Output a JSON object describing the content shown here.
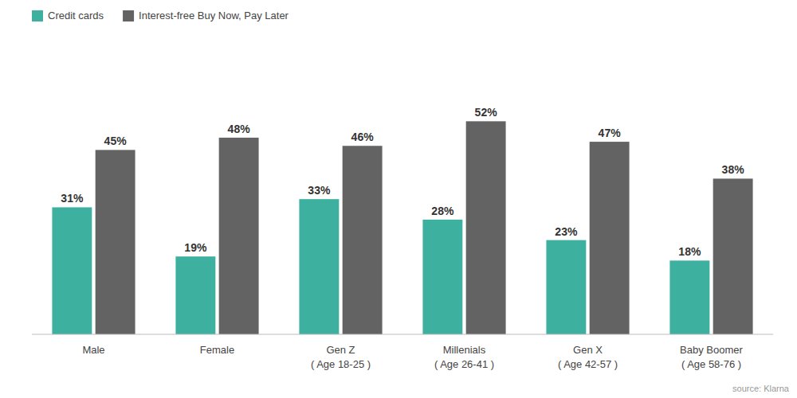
{
  "chart_data": {
    "type": "bar",
    "categories": [
      "Male",
      "Female",
      "Gen Z\n( Age 18-25 )",
      "Millenials\n( Age 26-41 )",
      "Gen X\n( Age 42-57 )",
      "Baby Boomer\n( Age 58-76 )"
    ],
    "series": [
      {
        "name": "Credit cards",
        "color": "#3db0a0",
        "values": [
          31,
          19,
          33,
          28,
          23,
          18
        ],
        "value_labels": [
          "31%",
          "19%",
          "33%",
          "28%",
          "23%",
          "18%"
        ]
      },
      {
        "name": "Interest-free Buy Now, Pay Later",
        "color": "#636363",
        "values": [
          45,
          48,
          46,
          52,
          47,
          38
        ],
        "value_labels": [
          "45%",
          "48%",
          "46%",
          "52%",
          "47%",
          "38%"
        ]
      }
    ],
    "ylim": [
      0,
      68
    ],
    "data_labels": true,
    "tick_labels": "x",
    "legend": "upper left",
    "annotations": [
      "source: Klarna"
    ]
  }
}
